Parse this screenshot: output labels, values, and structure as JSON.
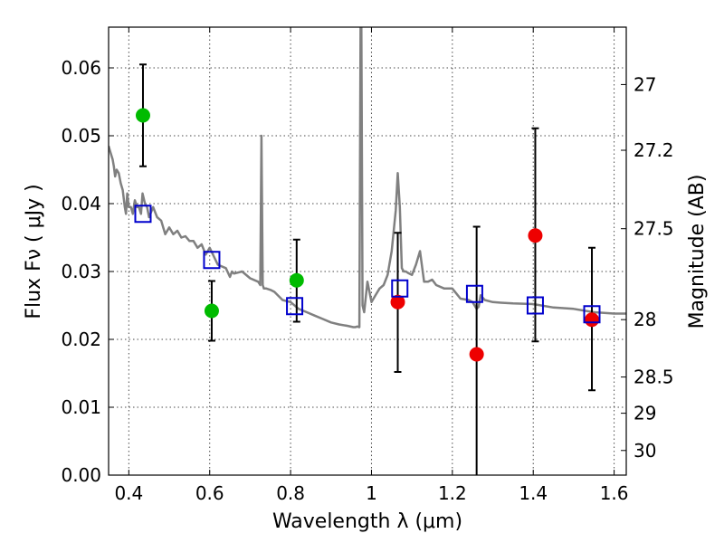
{
  "chart_data": {
    "type": "scatter",
    "title": "",
    "xlabel": "Wavelength  λ (μm)",
    "ylabel": "Flux  Fν  ( μJy )",
    "ylabel_right": "Magnitude (AB)",
    "xlim": [
      0.35,
      1.63
    ],
    "ylim": [
      0.0,
      0.066
    ],
    "grid": true,
    "x_ticks": [
      0.4,
      0.6,
      0.8,
      1.0,
      1.2,
      1.4,
      1.6
    ],
    "x_tick_labels": [
      "0.4",
      "0.6",
      "0.8",
      "1",
      "1.2",
      "1.4",
      "1.6"
    ],
    "y_ticks": [
      0.0,
      0.01,
      0.02,
      0.03,
      0.04,
      0.05,
      0.06
    ],
    "y_tick_labels": [
      "0.00",
      "0.01",
      "0.02",
      "0.03",
      "0.04",
      "0.05",
      "0.06"
    ],
    "right_axis_ticks": [
      {
        "label": "27",
        "mag": 27.0
      },
      {
        "label": "27.2",
        "mag": 27.2
      },
      {
        "label": "27.5",
        "mag": 27.5
      },
      {
        "label": "28",
        "mag": 28.0
      },
      {
        "label": "28.5",
        "mag": 28.5
      },
      {
        "label": "29",
        "mag": 29.0
      },
      {
        "label": "30",
        "mag": 30.0
      }
    ],
    "series": [
      {
        "marker": "circle",
        "color": "#00bb00",
        "points": [
          {
            "x": 0.435,
            "y": 0.053,
            "err_lo": 0.0455,
            "err_hi": 0.0605
          },
          {
            "x": 0.605,
            "y": 0.0242,
            "err_lo": 0.0198,
            "err_hi": 0.0286
          },
          {
            "x": 0.815,
            "y": 0.0287,
            "err_lo": 0.0226,
            "err_hi": 0.0347
          }
        ]
      },
      {
        "marker": "circle",
        "color": "#ee0000",
        "points": [
          {
            "x": 1.065,
            "y": 0.0255,
            "err_lo": 0.0152,
            "err_hi": 0.0357
          },
          {
            "x": 1.26,
            "y": 0.0178,
            "err_lo": 0.0,
            "err_hi": 0.0366
          },
          {
            "x": 1.405,
            "y": 0.0353,
            "err_lo": 0.0197,
            "err_hi": 0.0511
          },
          {
            "x": 1.545,
            "y": 0.0229,
            "err_lo": 0.0125,
            "err_hi": 0.0335
          }
        ]
      },
      {
        "marker": "open-square",
        "color": "#0000cc",
        "points": [
          {
            "x": 0.435,
            "y": 0.0385
          },
          {
            "x": 0.605,
            "y": 0.0317
          },
          {
            "x": 0.81,
            "y": 0.0249
          },
          {
            "x": 1.07,
            "y": 0.0275
          },
          {
            "x": 1.255,
            "y": 0.0267
          },
          {
            "x": 1.405,
            "y": 0.025
          },
          {
            "x": 1.545,
            "y": 0.0237
          }
        ]
      }
    ],
    "model_spectrum": {
      "color": "#808080",
      "x": [
        0.35,
        0.355,
        0.36,
        0.363,
        0.366,
        0.37,
        0.375,
        0.38,
        0.385,
        0.39,
        0.393,
        0.396,
        0.4,
        0.405,
        0.41,
        0.415,
        0.42,
        0.425,
        0.43,
        0.434,
        0.438,
        0.44,
        0.445,
        0.45,
        0.46,
        0.47,
        0.48,
        0.49,
        0.5,
        0.51,
        0.52,
        0.53,
        0.54,
        0.55,
        0.56,
        0.57,
        0.58,
        0.59,
        0.6,
        0.62,
        0.64,
        0.65,
        0.655,
        0.66,
        0.68,
        0.7,
        0.72,
        0.725,
        0.728,
        0.731,
        0.734,
        0.74,
        0.75,
        0.76,
        0.78,
        0.8,
        0.82,
        0.84,
        0.86,
        0.88,
        0.9,
        0.92,
        0.94,
        0.955,
        0.96,
        0.965,
        0.97,
        0.973,
        0.975,
        0.978,
        0.982,
        0.99,
        1.0,
        1.01,
        1.02,
        1.03,
        1.04,
        1.05,
        1.06,
        1.065,
        1.07,
        1.075,
        1.08,
        1.085,
        1.09,
        1.1,
        1.11,
        1.12,
        1.13,
        1.14,
        1.15,
        1.16,
        1.18,
        1.2,
        1.22,
        1.24,
        1.25,
        1.26,
        1.265,
        1.27,
        1.28,
        1.3,
        1.32,
        1.35,
        1.4,
        1.45,
        1.5,
        1.55,
        1.6,
        1.63
      ],
      "y": [
        0.0485,
        0.0475,
        0.0465,
        0.0455,
        0.044,
        0.045,
        0.0445,
        0.043,
        0.042,
        0.0395,
        0.0385,
        0.0415,
        0.0395,
        0.0395,
        0.0385,
        0.0405,
        0.0395,
        0.0395,
        0.0385,
        0.0415,
        0.0405,
        0.04,
        0.0395,
        0.038,
        0.0395,
        0.038,
        0.0375,
        0.0355,
        0.0365,
        0.0355,
        0.036,
        0.035,
        0.0352,
        0.0345,
        0.0345,
        0.0335,
        0.034,
        0.0325,
        0.0335,
        0.031,
        0.0305,
        0.0292,
        0.03,
        0.0297,
        0.03,
        0.029,
        0.0285,
        0.028,
        0.05,
        0.028,
        0.0275,
        0.0275,
        0.0273,
        0.027,
        0.0258,
        0.0255,
        0.0245,
        0.024,
        0.0235,
        0.023,
        0.0225,
        0.0222,
        0.022,
        0.0218,
        0.0218,
        0.0219,
        0.0218,
        0.066,
        0.066,
        0.025,
        0.024,
        0.0285,
        0.0255,
        0.0265,
        0.0275,
        0.028,
        0.0295,
        0.033,
        0.039,
        0.0445,
        0.0395,
        0.0305,
        0.03,
        0.03,
        0.0298,
        0.0295,
        0.031,
        0.033,
        0.0285,
        0.0285,
        0.0288,
        0.028,
        0.0275,
        0.0275,
        0.026,
        0.0258,
        0.0255,
        0.0245,
        0.0248,
        0.0265,
        0.0258,
        0.0255,
        0.0254,
        0.0253,
        0.0252,
        0.0247,
        0.0245,
        0.024,
        0.0238,
        0.0238
      ]
    }
  }
}
